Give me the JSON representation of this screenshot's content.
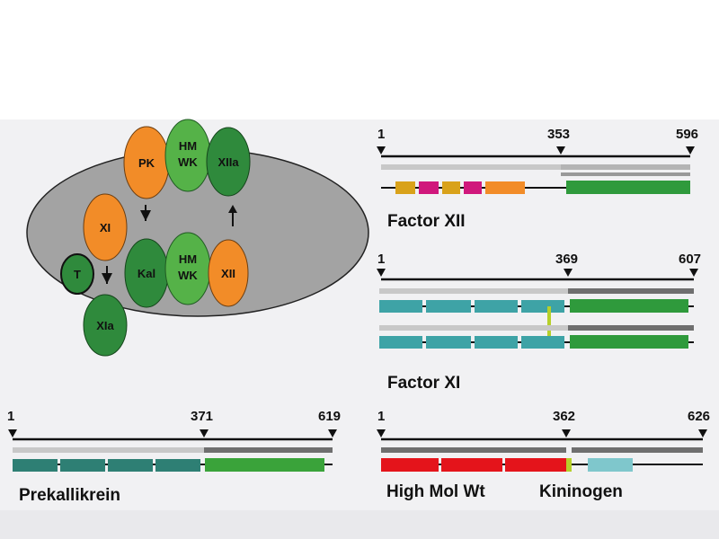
{
  "colors": {
    "orange": "#f28c28",
    "green": "#3aa33a",
    "dark_green": "#2f8a3c",
    "light_green": "#55b248",
    "teal": "#3ea3a6",
    "dark_teal": "#2e7f74",
    "red": "#e4141b",
    "yellow_green": "#b6d02a",
    "magenta": "#d0187c",
    "gold": "#d9a21a",
    "grey_ellipse": "#a3a3a3"
  },
  "complex_diagram": {
    "nodes": {
      "pk": "PK",
      "hmwk_top_line1": "HM",
      "hmwk_top_line2": "WK",
      "xiia": "XIIa",
      "xi": "XI",
      "kal": "Kal",
      "hmwk_bottom_line1": "HM",
      "hmwk_bottom_line2": "WK",
      "xii": "XII",
      "t": "T",
      "xia": "XIa"
    }
  },
  "factor_xii": {
    "title": "Factor XII",
    "start": "1",
    "cleavage": "353",
    "end": "596"
  },
  "factor_xi": {
    "title": "Factor XI",
    "start": "1",
    "cleavage": "369",
    "end": "607"
  },
  "prekallikrein": {
    "title": "Prekallikrein",
    "start": "1",
    "cleavage": "371",
    "end": "619"
  },
  "hmw_kininogen": {
    "title_left": "High Mol Wt",
    "title_right": "Kininogen",
    "start": "1",
    "cleavage": "362",
    "end": "626"
  }
}
